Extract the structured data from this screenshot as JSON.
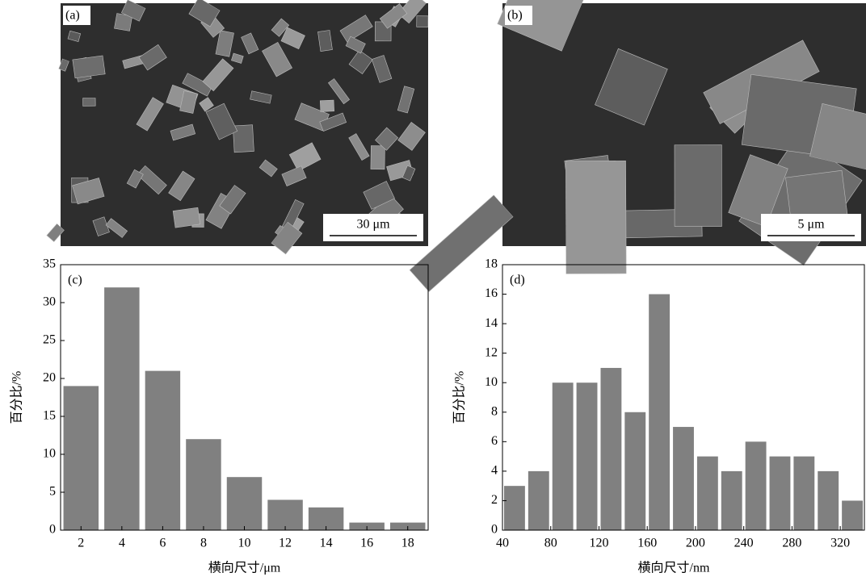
{
  "images": [
    {
      "label": "(a)",
      "scale_bar": "30 μm"
    },
    {
      "label": "(b)",
      "scale_bar": "5 μm"
    }
  ],
  "chart_data": [
    {
      "type": "bar",
      "annotation": "(c)",
      "x_label": "横向尺寸/μm",
      "y_label": "百分比/%",
      "x": [
        2,
        4,
        6,
        8,
        10,
        12,
        14,
        16,
        18
      ],
      "values": [
        19,
        32,
        21,
        12,
        7,
        4,
        3,
        1,
        1
      ],
      "color": "#808080",
      "xlim": [
        1,
        19
      ],
      "xticks": [
        2,
        4,
        6,
        8,
        10,
        12,
        14,
        16,
        18
      ],
      "ylim": [
        0,
        35
      ],
      "yticks": [
        0,
        5,
        10,
        15,
        20,
        25,
        30,
        35
      ]
    },
    {
      "type": "histogram",
      "annotation": "(d)",
      "x_label": "横向尺寸/nm",
      "y_label": "百分比/%",
      "bins": [
        40,
        60,
        80,
        100,
        120,
        140,
        160,
        180,
        200,
        220,
        240,
        260,
        280,
        300,
        320,
        340
      ],
      "values": [
        3,
        4,
        10,
        10,
        11,
        8,
        16,
        7,
        5,
        4,
        6,
        5,
        5,
        4,
        2
      ],
      "color": "#808080",
      "xlim": [
        40,
        340
      ],
      "xticks": [
        40,
        80,
        120,
        160,
        200,
        240,
        280,
        320
      ],
      "ylim": [
        0,
        18
      ],
      "yticks": [
        0,
        2,
        4,
        6,
        8,
        10,
        12,
        14,
        16,
        18
      ]
    }
  ]
}
